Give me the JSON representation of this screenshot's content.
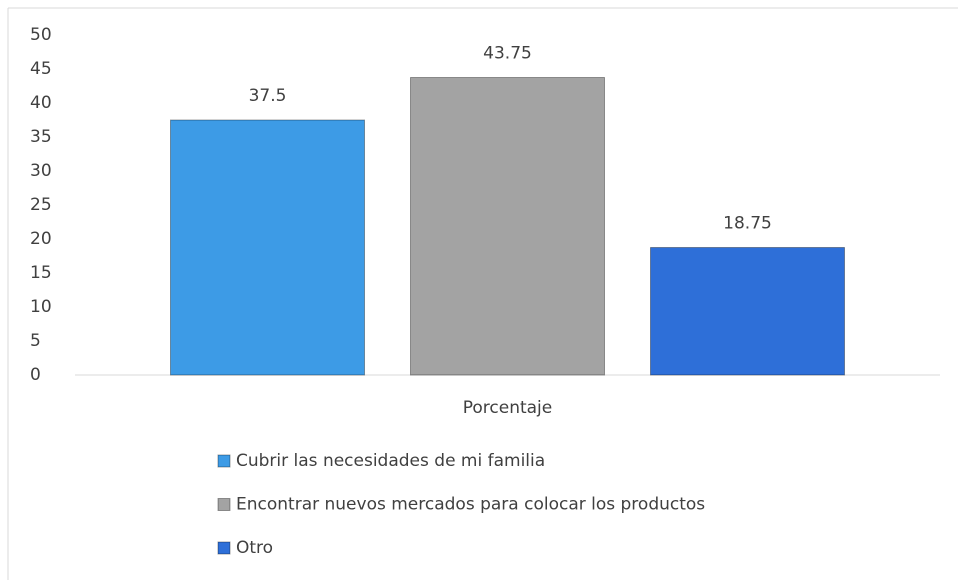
{
  "chart_data": {
    "type": "bar",
    "categories": [
      "Porcentaje"
    ],
    "series": [
      {
        "name": "Cubrir las necesidades de mi familia",
        "color": "#3d9be6",
        "values": [
          37.5
        ]
      },
      {
        "name": "Encontrar nuevos mercados para colocar los productos",
        "color": "#a3a3a3",
        "values": [
          43.75
        ]
      },
      {
        "name": "Otro",
        "color": "#2e6fd8",
        "values": [
          18.75
        ]
      }
    ],
    "ylim": [
      0,
      50
    ],
    "yticks": [
      0,
      5,
      10,
      15,
      20,
      25,
      30,
      35,
      40,
      45,
      50
    ],
    "grid": false,
    "legend": "bottom"
  }
}
